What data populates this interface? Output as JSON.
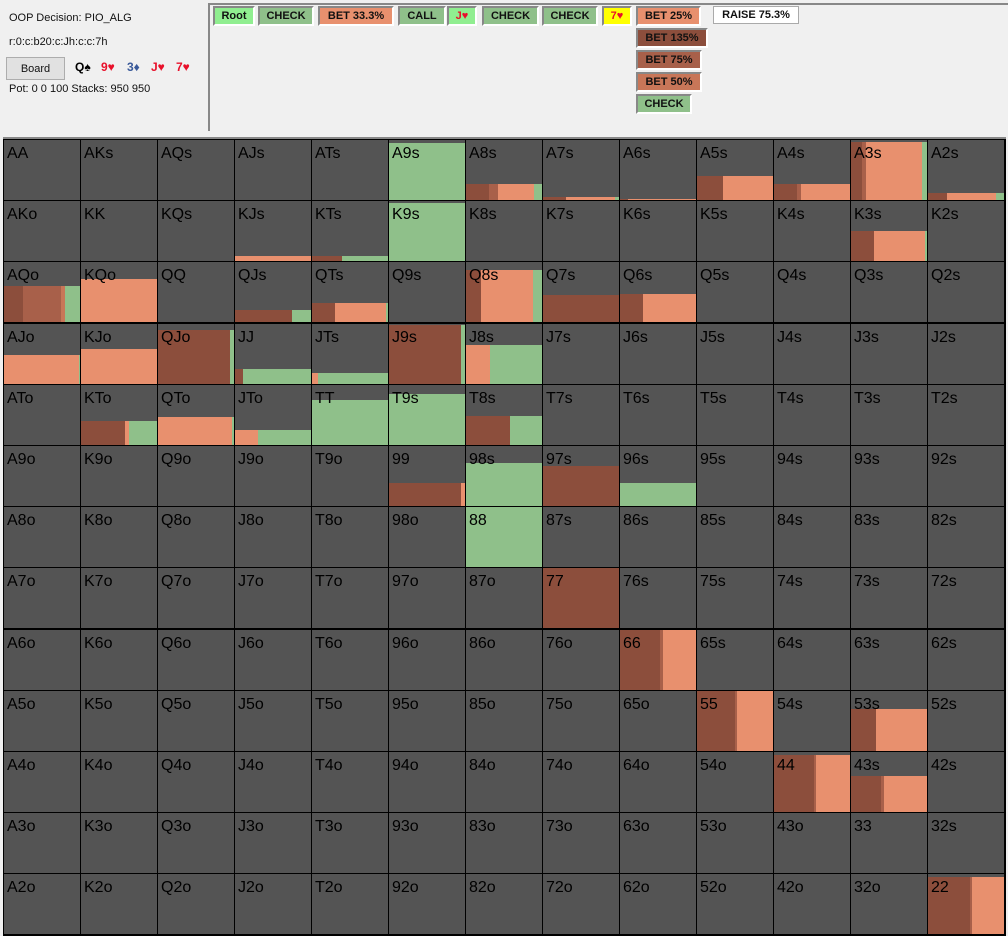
{
  "info": {
    "decision": "OOP Decision:  PIO_ALG",
    "line": "r:0:c:b20:c:Jh:c:c:7h",
    "board_button": "Board",
    "pot": "Pot: 0 0 100 Stacks: 950 950",
    "cards": [
      {
        "text": "Q♠",
        "color": "#000000"
      },
      {
        "text": "9♥",
        "color": "#e8102a"
      },
      {
        "text": "3♦",
        "color": "#3a5a9a"
      },
      {
        "text": "J♥",
        "color": "#e8102a"
      },
      {
        "text": "7♥",
        "color": "#e8102a"
      }
    ]
  },
  "tree": {
    "path": [
      {
        "label": "Root",
        "color": "#90ee90"
      },
      {
        "label": "CHECK",
        "color": "#8fc08a"
      },
      {
        "label": "BET 33.3%",
        "color": "#e8906e"
      },
      {
        "label": "CALL",
        "color": "#8fc08a"
      },
      {
        "label": "J♥",
        "color": "#90ee90",
        "text_color": "#e8102a"
      },
      {
        "label": "CHECK",
        "color": "#8fc08a"
      },
      {
        "label": "CHECK",
        "color": "#8fc08a"
      },
      {
        "label": "7♥",
        "color": "#ffff00",
        "text_color": "#e8102a"
      },
      {
        "label": "BET 25%",
        "color": "#e8906e"
      },
      {
        "label": "RAISE 75.3%",
        "color": "#ffffff"
      }
    ],
    "options": [
      {
        "label": "BET 135%",
        "color": "#8c4e3c"
      },
      {
        "label": "BET 75%",
        "color": "#a8604a"
      },
      {
        "label": "BET 50%",
        "color": "#c87658"
      },
      {
        "label": "CHECK",
        "color": "#8fc08a"
      }
    ]
  },
  "action_colors": [
    "#8c4e3c",
    "#a8604a",
    "#c87658",
    "#e8906e",
    "#8fc08a"
  ],
  "grid": [
    [
      "AA",
      "AKs",
      "AQs",
      "AJs",
      "ATs",
      "A9s",
      "A8s",
      "A7s",
      "A6s",
      "A5s",
      "A4s",
      "A3s",
      "A2s"
    ],
    [
      "AKo",
      "KK",
      "KQs",
      "KJs",
      "KTs",
      "K9s",
      "K8s",
      "K7s",
      "K6s",
      "K5s",
      "K4s",
      "K3s",
      "K2s"
    ],
    [
      "AQo",
      "KQo",
      "QQ",
      "QJs",
      "QTs",
      "Q9s",
      "Q8s",
      "Q7s",
      "Q6s",
      "Q5s",
      "Q4s",
      "Q3s",
      "Q2s"
    ],
    [
      "AJo",
      "KJo",
      "QJo",
      "JJ",
      "JTs",
      "J9s",
      "J8s",
      "J7s",
      "J6s",
      "J5s",
      "J4s",
      "J3s",
      "J2s"
    ],
    [
      "ATo",
      "KTo",
      "QTo",
      "JTo",
      "TT",
      "T9s",
      "T8s",
      "T7s",
      "T6s",
      "T5s",
      "T4s",
      "T3s",
      "T2s"
    ],
    [
      "A9o",
      "K9o",
      "Q9o",
      "J9o",
      "T9o",
      "99",
      "98s",
      "97s",
      "96s",
      "95s",
      "94s",
      "93s",
      "92s"
    ],
    [
      "A8o",
      "K8o",
      "Q8o",
      "J8o",
      "T8o",
      "98o",
      "88",
      "87s",
      "86s",
      "85s",
      "84s",
      "83s",
      "82s"
    ],
    [
      "A7o",
      "K7o",
      "Q7o",
      "J7o",
      "T7o",
      "97o",
      "87o",
      "77",
      "76s",
      "75s",
      "74s",
      "73s",
      "72s"
    ],
    [
      "A6o",
      "K6o",
      "Q6o",
      "J6o",
      "T6o",
      "96o",
      "86o",
      "76o",
      "66",
      "65s",
      "64s",
      "63s",
      "62s"
    ],
    [
      "A5o",
      "K5o",
      "Q5o",
      "J5o",
      "T5o",
      "95o",
      "85o",
      "75o",
      "65o",
      "55",
      "54s",
      "53s",
      "52s"
    ],
    [
      "A4o",
      "K4o",
      "Q4o",
      "J4o",
      "T4o",
      "94o",
      "84o",
      "74o",
      "64o",
      "54o",
      "44",
      "43s",
      "42s"
    ],
    [
      "A3o",
      "K3o",
      "Q3o",
      "J3o",
      "T3o",
      "93o",
      "83o",
      "73o",
      "63o",
      "53o",
      "43o",
      "33",
      "32s"
    ],
    [
      "A2o",
      "K2o",
      "Q2o",
      "J2o",
      "T2o",
      "92o",
      "82o",
      "72o",
      "62o",
      "52o",
      "42o",
      "32o",
      "22"
    ]
  ],
  "strategy_legend": [
    "weight",
    "bet135",
    "bet75",
    "bet50",
    "bet25",
    "check"
  ],
  "strategy": {
    "A9s": [
      0.95,
      0,
      0,
      0,
      0,
      1
    ],
    "A8s": [
      0.26,
      0.3,
      0.12,
      0,
      0.47,
      0.11
    ],
    "A7s": [
      0.05,
      0.3,
      0,
      0,
      0.65,
      0.05
    ],
    "A6s": [
      0.02,
      0.1,
      0,
      0,
      0.9,
      0
    ],
    "A5s": [
      0.4,
      0.34,
      0,
      0,
      0.66,
      0
    ],
    "A4s": [
      0.27,
      0.3,
      0.05,
      0,
      0.65,
      0
    ],
    "A3s": [
      0.97,
      0.15,
      0.05,
      0,
      0.73,
      0.07
    ],
    "A2s": [
      0.12,
      0.25,
      0,
      0,
      0.65,
      0.1
    ],
    "KJs": [
      0.08,
      0,
      0,
      0,
      1,
      0
    ],
    "KTs": [
      0.08,
      0.4,
      0,
      0,
      0,
      0.6
    ],
    "K9s": [
      0.97,
      0,
      0,
      0,
      0,
      1
    ],
    "K3s": [
      0.5,
      0.3,
      0,
      0,
      0.68,
      0.02
    ],
    "AQo": [
      0.6,
      0.25,
      0.5,
      0.05,
      0,
      0.2
    ],
    "KQo": [
      0.72,
      0,
      0,
      0,
      1,
      0
    ],
    "QJs": [
      0.2,
      0.75,
      0,
      0,
      0,
      0.25
    ],
    "QTs": [
      0.33,
      0.3,
      0,
      0,
      0.68,
      0.02
    ],
    "Q8s": [
      0.87,
      0.2,
      0,
      0,
      0.68,
      0.12
    ],
    "Q7s": [
      0.45,
      1,
      0,
      0,
      0,
      0
    ],
    "Q6s": [
      0.47,
      0.3,
      0,
      0,
      0.7,
      0
    ],
    "AJo": [
      0.48,
      0,
      0,
      0,
      0.99,
      0.01
    ],
    "KJo": [
      0.57,
      0,
      0,
      0,
      1,
      0
    ],
    "QJo": [
      0.9,
      0.95,
      0,
      0,
      0,
      0.05
    ],
    "JJ": [
      0.25,
      0.1,
      0,
      0,
      0,
      0.9
    ],
    "JTs": [
      0.18,
      0,
      0,
      0,
      0.08,
      0.92
    ],
    "J9s": [
      0.97,
      0.95,
      0,
      0,
      0,
      0.05
    ],
    "J8s": [
      0.65,
      0,
      0,
      0,
      0.32,
      0.68
    ],
    "KTo": [
      0.4,
      0.58,
      0,
      0,
      0.05,
      0.37
    ],
    "QTo": [
      0.47,
      0,
      0,
      0,
      0.97,
      0.03
    ],
    "JTo": [
      0.25,
      0,
      0,
      0,
      0.3,
      0.7
    ],
    "TT": [
      0.75,
      0,
      0,
      0,
      0,
      1
    ],
    "T9s": [
      0.85,
      0,
      0,
      0,
      0,
      1
    ],
    "T8s": [
      0.48,
      0.58,
      0,
      0,
      0,
      0.42
    ],
    "99": [
      0.38,
      0.95,
      0,
      0,
      0.05,
      0
    ],
    "98s": [
      0.72,
      0,
      0,
      0,
      0,
      1
    ],
    "97s": [
      0.67,
      1,
      0,
      0,
      0,
      0
    ],
    "96s": [
      0.38,
      0,
      0,
      0,
      0,
      1
    ],
    "88": [
      1,
      0,
      0,
      0,
      0,
      1
    ],
    "77": [
      1,
      1,
      0,
      0,
      0,
      0
    ],
    "66": [
      1,
      0.52,
      0.04,
      0,
      0.44,
      0
    ],
    "55": [
      1,
      0.5,
      0.03,
      0,
      0.47,
      0
    ],
    "53s": [
      0.7,
      0.33,
      0,
      0,
      0.67,
      0
    ],
    "44": [
      0.95,
      0.52,
      0.03,
      0,
      0.45,
      0
    ],
    "43s": [
      0.6,
      0.4,
      0.03,
      0,
      0.57,
      0
    ],
    "22": [
      0.95,
      0.55,
      0.03,
      0,
      0.42,
      0
    ]
  }
}
